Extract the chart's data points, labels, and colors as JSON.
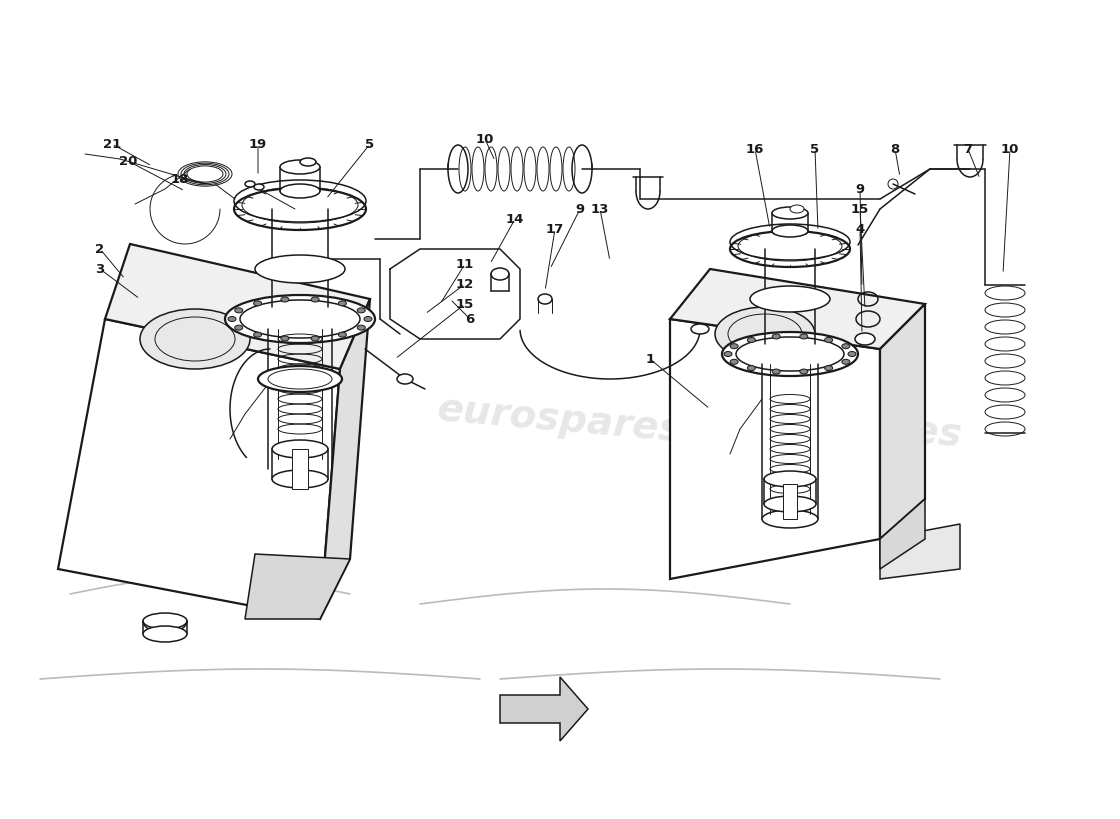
{
  "bg": "#ffffff",
  "lc": "#1a1a1a",
  "wm_color": "#bbbbbb",
  "wm_alpha": 0.35,
  "wm_text": "eurospares",
  "figsize": [
    11.0,
    8.0
  ],
  "dpi": 100,
  "arrow_color": "#c0c0c0",
  "label_fontsize": 9.5,
  "label_fontweight": "bold"
}
